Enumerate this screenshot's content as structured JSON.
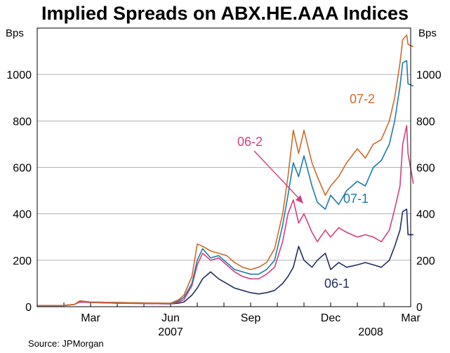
{
  "chart_data": {
    "type": "line",
    "title": "Implied Spreads on ABX.HE.AAA Indices",
    "source": "Source: JPMorgan",
    "ylabel_left": "Bps",
    "ylabel_right": "Bps",
    "ylim": [
      0,
      1200
    ],
    "yticks": [
      0,
      200,
      400,
      600,
      800,
      1000
    ],
    "xlim": [
      0,
      14
    ],
    "xticks": [
      {
        "x": 2,
        "label": "Mar"
      },
      {
        "x": 5,
        "label": "Jun"
      },
      {
        "x": 8,
        "label": "Sep"
      },
      {
        "x": 11,
        "label": "Dec"
      },
      {
        "x": 14,
        "label": "Mar"
      }
    ],
    "year_labels": [
      {
        "x": 5,
        "label": "2007"
      },
      {
        "x": 12.5,
        "label": "2008"
      }
    ],
    "grid": true,
    "series": [
      {
        "name": "06-1",
        "color": "#1f2f5e",
        "x": [
          0.0,
          1.0,
          1.4,
          1.6,
          2.0,
          3.0,
          4.0,
          5.0,
          5.3,
          5.5,
          5.8,
          6.0,
          6.2,
          6.5,
          6.8,
          7.1,
          7.4,
          7.7,
          8.0,
          8.3,
          8.6,
          8.9,
          9.2,
          9.4,
          9.6,
          9.8,
          10.0,
          10.3,
          10.5,
          10.8,
          11.0,
          11.3,
          11.6,
          12.0,
          12.3,
          12.6,
          12.9,
          13.2,
          13.4,
          13.6,
          13.7,
          13.85,
          13.9,
          14.1
        ],
        "y": [
          5,
          5,
          10,
          20,
          18,
          15,
          14,
          12,
          15,
          20,
          50,
          80,
          120,
          150,
          120,
          100,
          80,
          70,
          60,
          55,
          60,
          70,
          100,
          130,
          170,
          260,
          200,
          170,
          200,
          230,
          160,
          190,
          170,
          180,
          190,
          180,
          170,
          200,
          260,
          330,
          410,
          420,
          310,
          310
        ]
      },
      {
        "name": "06-2",
        "color": "#d0407e",
        "x": [
          0.0,
          1.0,
          1.4,
          1.6,
          2.0,
          3.0,
          4.0,
          5.0,
          5.3,
          5.5,
          5.8,
          6.0,
          6.2,
          6.5,
          6.8,
          7.1,
          7.4,
          7.7,
          8.0,
          8.3,
          8.6,
          8.9,
          9.2,
          9.4,
          9.6,
          9.8,
          10.0,
          10.3,
          10.5,
          10.8,
          11.0,
          11.3,
          11.6,
          12.0,
          12.3,
          12.6,
          12.9,
          13.2,
          13.4,
          13.6,
          13.7,
          13.85,
          13.9,
          14.1
        ],
        "y": [
          5,
          5,
          10,
          20,
          18,
          15,
          14,
          12,
          20,
          30,
          90,
          180,
          230,
          200,
          210,
          180,
          150,
          130,
          120,
          120,
          140,
          170,
          280,
          400,
          460,
          360,
          400,
          320,
          280,
          330,
          300,
          340,
          320,
          300,
          310,
          300,
          280,
          330,
          420,
          520,
          700,
          780,
          660,
          530
        ]
      },
      {
        "name": "07-1",
        "color": "#1e7ba8",
        "x": [
          0.0,
          1.0,
          1.4,
          1.6,
          2.0,
          3.0,
          4.0,
          5.0,
          5.3,
          5.5,
          5.8,
          6.0,
          6.2,
          6.5,
          6.8,
          7.1,
          7.4,
          7.7,
          8.0,
          8.3,
          8.6,
          8.9,
          9.2,
          9.4,
          9.6,
          9.8,
          10.0,
          10.3,
          10.5,
          10.8,
          11.0,
          11.3,
          11.6,
          12.0,
          12.3,
          12.6,
          12.9,
          13.2,
          13.4,
          13.6,
          13.7,
          13.85,
          13.9,
          14.1
        ],
        "y": [
          5,
          5,
          10,
          25,
          20,
          18,
          16,
          14,
          25,
          40,
          100,
          200,
          250,
          210,
          220,
          190,
          160,
          150,
          140,
          140,
          160,
          200,
          350,
          480,
          620,
          560,
          650,
          520,
          450,
          420,
          480,
          440,
          500,
          540,
          520,
          600,
          630,
          700,
          800,
          950,
          1050,
          1060,
          960,
          950
        ]
      },
      {
        "name": "07-2",
        "color": "#cc6b2c",
        "x": [
          0.0,
          1.0,
          1.4,
          1.6,
          2.0,
          3.0,
          4.0,
          5.0,
          5.3,
          5.5,
          5.8,
          6.0,
          6.2,
          6.5,
          6.8,
          7.1,
          7.4,
          7.7,
          8.0,
          8.3,
          8.6,
          8.9,
          9.2,
          9.4,
          9.6,
          9.8,
          10.0,
          10.3,
          10.5,
          10.8,
          11.0,
          11.3,
          11.6,
          12.0,
          12.3,
          12.6,
          12.9,
          13.2,
          13.4,
          13.6,
          13.7,
          13.85,
          13.9,
          14.1
        ],
        "y": [
          5,
          5,
          10,
          25,
          20,
          18,
          16,
          15,
          30,
          50,
          130,
          270,
          260,
          240,
          230,
          220,
          190,
          170,
          160,
          170,
          190,
          250,
          400,
          560,
          760,
          660,
          760,
          620,
          560,
          480,
          520,
          560,
          620,
          680,
          640,
          700,
          720,
          800,
          900,
          1050,
          1150,
          1170,
          1130,
          1120
        ]
      }
    ],
    "annotations": [
      {
        "text": "07-2",
        "series": "07-2"
      },
      {
        "text": "06-2",
        "series": "06-2"
      },
      {
        "text": "07-1",
        "series": "07-1"
      },
      {
        "text": "06-1",
        "series": "06-1"
      }
    ]
  }
}
